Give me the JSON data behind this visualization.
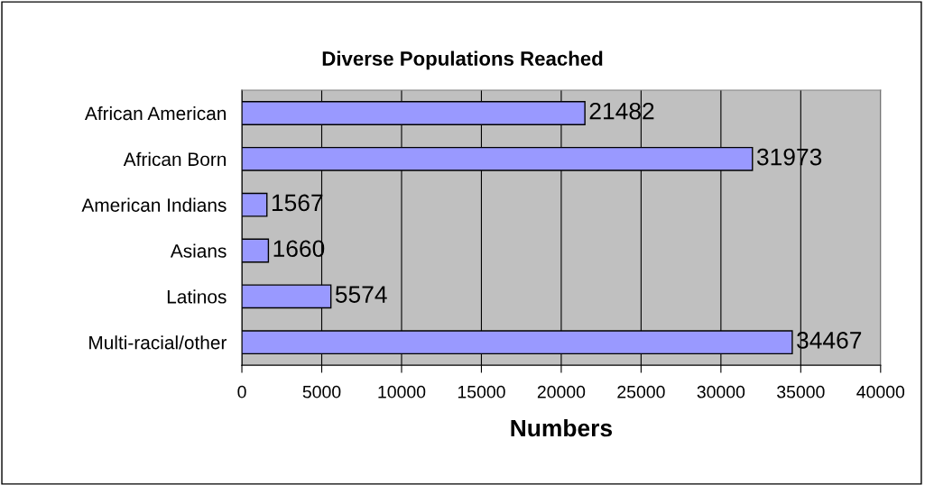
{
  "chart_data": {
    "type": "bar",
    "orientation": "horizontal",
    "title": "Diverse Populations Reached",
    "xlabel": "Numbers",
    "categories": [
      "African American",
      "African Born",
      "American Indians",
      "Asians",
      "Latinos",
      "Multi-racial/other"
    ],
    "values": [
      21482,
      31973,
      1567,
      1660,
      5574,
      34467
    ],
    "color": "#9999ff",
    "xlim": [
      0,
      40000
    ],
    "xticks": [
      0,
      5000,
      10000,
      15000,
      20000,
      25000,
      30000,
      35000,
      40000
    ],
    "grid": "x",
    "data_labels": true
  }
}
